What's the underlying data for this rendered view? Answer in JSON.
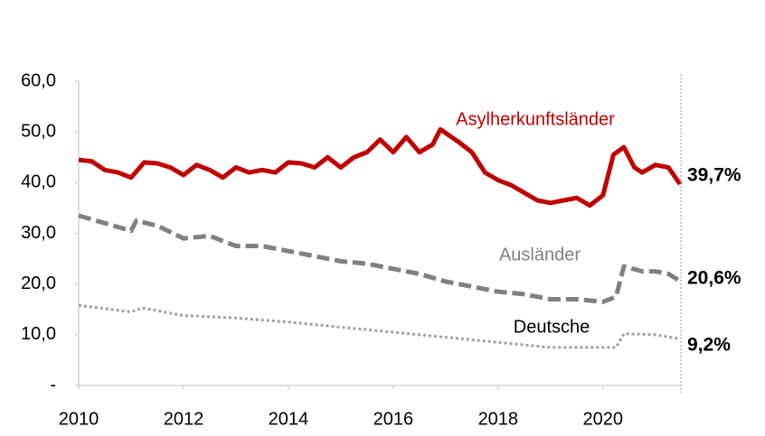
{
  "chart_data": {
    "type": "line",
    "xlim": [
      2010,
      2021.47
    ],
    "xticks": [
      2010,
      2012,
      2014,
      2016,
      2018,
      2020
    ],
    "ylim": [
      0,
      60
    ],
    "yticks": [
      {
        "value": 0,
        "label": "-"
      },
      {
        "value": 10,
        "label": "10,0"
      },
      {
        "value": 20,
        "label": "20,0"
      },
      {
        "value": 30,
        "label": "30,0"
      },
      {
        "value": 40,
        "label": "40,0"
      },
      {
        "value": 50,
        "label": "50,0"
      },
      {
        "value": 60,
        "label": "60,0"
      }
    ],
    "series": [
      {
        "name": "Asylherkunftsländer",
        "color": "#c00000",
        "style": "solid",
        "x": [
          2010.0,
          2010.25,
          2010.5,
          2010.75,
          2011.0,
          2011.25,
          2011.5,
          2011.75,
          2012.0,
          2012.25,
          2012.5,
          2012.75,
          2013.0,
          2013.25,
          2013.5,
          2013.75,
          2014.0,
          2014.25,
          2014.5,
          2014.75,
          2015.0,
          2015.25,
          2015.5,
          2015.75,
          2016.0,
          2016.25,
          2016.5,
          2016.75,
          2016.9,
          2017.25,
          2017.5,
          2017.75,
          2018.0,
          2018.25,
          2018.5,
          2018.75,
          2019.0,
          2019.25,
          2019.5,
          2019.75,
          2020.0,
          2020.2,
          2020.4,
          2020.6,
          2020.75,
          2021.0,
          2021.25,
          2021.47
        ],
        "values": [
          44.5,
          44.2,
          42.5,
          42.0,
          41.0,
          44.0,
          43.8,
          43.0,
          41.5,
          43.5,
          42.5,
          41.0,
          43.0,
          42.0,
          42.5,
          42.0,
          44.0,
          43.8,
          43.0,
          45.0,
          43.0,
          45.0,
          46.0,
          48.5,
          46.0,
          49.0,
          46.0,
          47.5,
          50.5,
          48.0,
          46.0,
          42.0,
          40.5,
          39.5,
          38.0,
          36.5,
          36.0,
          36.5,
          37.0,
          35.5,
          37.5,
          45.5,
          47.0,
          43.0,
          42.0,
          43.5,
          43.0,
          39.7
        ],
        "value_labels": [
          null,
          null,
          null,
          null,
          null,
          null,
          null,
          null,
          null,
          null,
          null,
          null,
          null,
          null,
          null,
          null,
          null,
          null,
          null,
          null,
          null,
          null,
          null,
          null,
          null,
          null,
          null,
          null,
          null,
          null,
          null,
          null,
          null,
          null,
          null,
          null,
          null,
          null,
          null,
          null,
          null,
          null,
          null,
          null,
          null,
          null,
          null,
          "39,7%"
        ]
      },
      {
        "name": "Ausländer",
        "color": "#808080",
        "style": "dashed",
        "x": [
          2010.0,
          2010.5,
          2011.0,
          2011.1,
          2011.5,
          2012.0,
          2012.5,
          2013.0,
          2013.5,
          2014.0,
          2014.5,
          2015.0,
          2015.5,
          2016.0,
          2016.5,
          2017.0,
          2017.5,
          2018.0,
          2018.5,
          2019.0,
          2019.5,
          2020.0,
          2020.25,
          2020.4,
          2020.75,
          2021.0,
          2021.25,
          2021.47
        ],
        "values": [
          33.5,
          32.0,
          30.5,
          32.5,
          31.5,
          29.0,
          29.5,
          27.5,
          27.5,
          26.5,
          25.5,
          24.5,
          24.0,
          23.0,
          22.0,
          20.5,
          19.5,
          18.5,
          18.0,
          17.0,
          17.0,
          16.5,
          17.5,
          23.5,
          22.5,
          22.5,
          22.0,
          20.6
        ],
        "value_labels": [
          null,
          null,
          null,
          null,
          null,
          null,
          null,
          null,
          null,
          null,
          null,
          null,
          null,
          null,
          null,
          null,
          null,
          null,
          null,
          null,
          null,
          null,
          null,
          null,
          null,
          null,
          null,
          "20,6%"
        ]
      },
      {
        "name": "Deutsche",
        "color": "#a0a0a0",
        "style": "dotted",
        "x": [
          2010.0,
          2011.0,
          2011.2,
          2012.0,
          2013.0,
          2014.0,
          2015.0,
          2016.0,
          2017.0,
          2018.0,
          2019.0,
          2020.0,
          2020.25,
          2020.4,
          2021.0,
          2021.47
        ],
        "values": [
          15.8,
          14.5,
          15.3,
          13.8,
          13.3,
          12.5,
          11.5,
          10.5,
          9.5,
          8.5,
          7.5,
          7.5,
          7.5,
          10.2,
          10.0,
          9.2
        ],
        "value_labels": [
          null,
          null,
          null,
          null,
          null,
          null,
          null,
          null,
          null,
          null,
          null,
          null,
          null,
          null,
          null,
          "9,2%"
        ]
      }
    ]
  }
}
